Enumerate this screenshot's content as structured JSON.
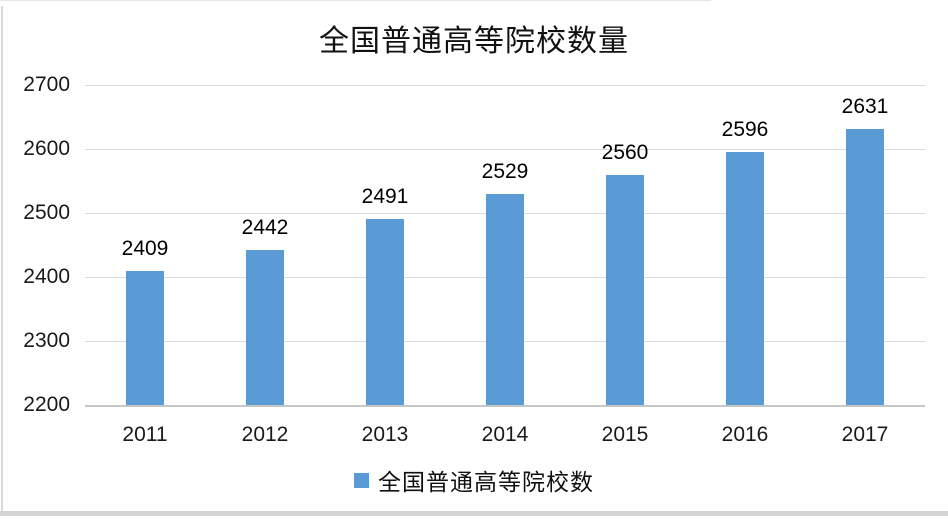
{
  "title": "全国普通高等院校数量",
  "legend": {
    "label": "全国普通高等院校数",
    "swatch_color": "#5b9bd5"
  },
  "colors": {
    "bar": "#5b9bd5",
    "gridline": "#d9d9d9",
    "axis_line": "#c6c6c6"
  },
  "chart_data": {
    "type": "bar",
    "title": "全国普通高等院校数量",
    "categories": [
      "2011",
      "2012",
      "2013",
      "2014",
      "2015",
      "2016",
      "2017"
    ],
    "series": [
      {
        "name": "全国普通高等院校数",
        "values": [
          2409,
          2442,
          2491,
          2529,
          2560,
          2596,
          2631
        ]
      }
    ],
    "xlabel": "",
    "ylabel": "",
    "ylim": [
      2200,
      2700
    ],
    "yticks": [
      2200,
      2300,
      2400,
      2500,
      2600,
      2700
    ],
    "grid": true,
    "data_labels": true,
    "legend_position": "bottom"
  }
}
